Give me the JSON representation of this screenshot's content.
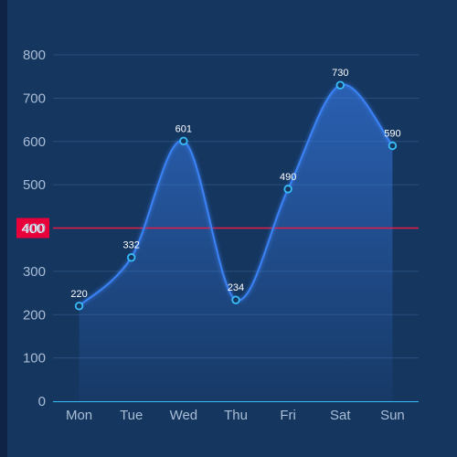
{
  "chart_data": {
    "type": "area",
    "categories": [
      "Mon",
      "Tue",
      "Wed",
      "Thu",
      "Fri",
      "Sat",
      "Sun"
    ],
    "series": [
      {
        "values": [
          220,
          332,
          601,
          234,
          490,
          730,
          590
        ]
      }
    ],
    "ylim": [
      0,
      800
    ],
    "yticks": [
      0,
      100,
      200,
      300,
      400,
      500,
      600,
      700,
      800
    ],
    "grid": true,
    "smooth": true,
    "data_labels": true,
    "threshold": {
      "value": 400,
      "label": "400"
    },
    "colors": {
      "background": "#15365f",
      "line": "#3b82f6",
      "marker": "#38bdf8",
      "area_top": "#3b82f6",
      "threshold": "#e11d48",
      "threshold_label_bg": "#e8003a",
      "axis": "#38bdf8",
      "grid": "#2a4f7d",
      "tick_text": "#a9bdd6"
    }
  }
}
